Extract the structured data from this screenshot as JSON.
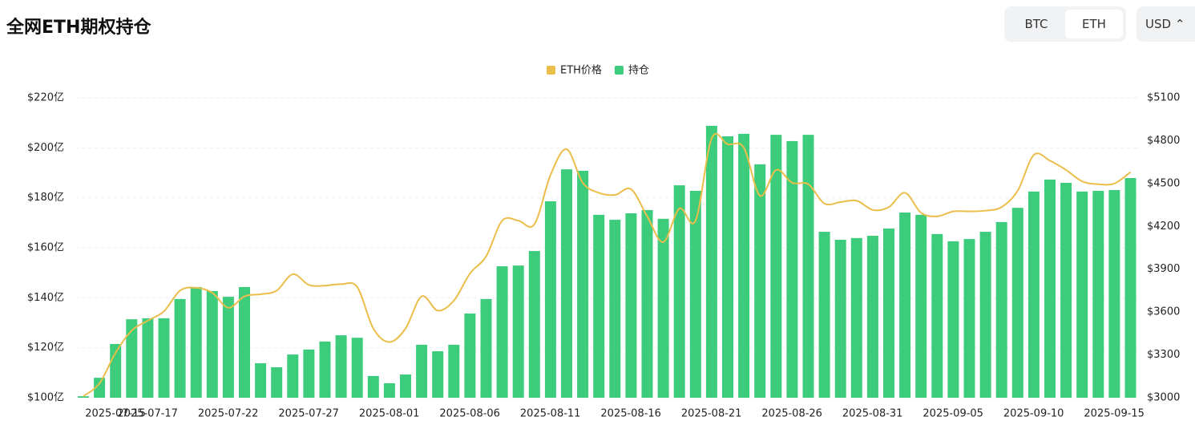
{
  "header": {
    "title": "全网ETH期权持仓",
    "tabs": [
      "BTC",
      "ETH"
    ],
    "currency": "USD"
  },
  "chart_data": {
    "type": "bar-line",
    "categories": [
      "2025-07-15",
      null,
      "2025-07-17",
      null,
      null,
      null,
      null,
      "2025-07-22",
      null,
      null,
      null,
      null,
      "2025-07-27",
      null,
      null,
      null,
      null,
      "2025-08-01",
      null,
      null,
      null,
      null,
      "2025-08-06",
      null,
      null,
      null,
      null,
      "2025-08-11",
      null,
      null,
      null,
      null,
      "2025-08-16",
      null,
      null,
      null,
      null,
      "2025-08-21",
      null,
      null,
      null,
      null,
      "2025-08-26",
      null,
      null,
      null,
      null,
      "2025-08-31",
      null,
      null,
      null,
      null,
      "2025-09-05",
      null,
      null,
      null,
      null,
      "2025-09-10",
      null,
      null,
      null,
      null,
      "2025-09-15",
      null,
      null,
      null
    ],
    "series": [
      {
        "name": "ETH价格",
        "color": "#ebbd4a",
        "axis": "y2",
        "values": [
          3010,
          3100,
          3315,
          3470,
          3540,
          3605,
          3750,
          3770,
          3735,
          3630,
          3710,
          3725,
          3750,
          3865,
          3790,
          3785,
          3795,
          3775,
          3485,
          3390,
          3485,
          3710,
          3610,
          3680,
          3870,
          3990,
          4240,
          4240,
          4215,
          4560,
          4740,
          4505,
          4435,
          4420,
          4460,
          4270,
          4090,
          4325,
          4240,
          4815,
          4775,
          4750,
          4415,
          4595,
          4505,
          4495,
          4360,
          4370,
          4380,
          4315,
          4335,
          4435,
          4295,
          4270,
          4305,
          4305,
          4310,
          4335,
          4450,
          4700,
          4660,
          4595,
          4515,
          4495,
          4500,
          4580
        ]
      },
      {
        "name": "持仓",
        "color": "#3dcc7b",
        "values": [
          100.6,
          108,
          121.5,
          131.4,
          131.8,
          131.8,
          139.5,
          144.3,
          142.7,
          140.4,
          144.3,
          113.8,
          112.2,
          117.3,
          119.3,
          122.5,
          125,
          124,
          108.7,
          105.8,
          109.3,
          121.2,
          118.6,
          121.2,
          133.7,
          139.5,
          152.6,
          152.9,
          158.7,
          178.6,
          191.4,
          190.8,
          173.2,
          171.2,
          173.8,
          175.1,
          171.6,
          185,
          182.8,
          208.8,
          204.6,
          205.6,
          193.4,
          205.2,
          202.7,
          205.2,
          166.4,
          163.2,
          163.9,
          164.8,
          167.7,
          174.1,
          173.2,
          165.5,
          162.6,
          163.5,
          166.4,
          170.3,
          176,
          182.5,
          187.3,
          186,
          182.5,
          182.8,
          183.1,
          187.9
        ]
      }
    ],
    "ylim": [
      100,
      220
    ],
    "yticks": [
      {
        "value": 100,
        "label": "$100亿"
      },
      {
        "value": 120,
        "label": "$120亿"
      },
      {
        "value": 140,
        "label": "$140亿"
      },
      {
        "value": 160,
        "label": "$160亿"
      },
      {
        "value": 180,
        "label": "$180亿"
      },
      {
        "value": 200,
        "label": "$200亿"
      },
      {
        "value": 220,
        "label": "$220亿"
      }
    ],
    "y2lim": [
      3000,
      5100
    ],
    "y2ticks": [
      {
        "value": 3000,
        "label": "$3000"
      },
      {
        "value": 3300,
        "label": "$3300"
      },
      {
        "value": 3600,
        "label": "$3600"
      },
      {
        "value": 3900,
        "label": "$3900"
      },
      {
        "value": 4200,
        "label": "$4200"
      },
      {
        "value": 4500,
        "label": "$4500"
      },
      {
        "value": 4800,
        "label": "$4800"
      },
      {
        "value": 5100,
        "label": "$5100"
      }
    ],
    "grid": true
  }
}
